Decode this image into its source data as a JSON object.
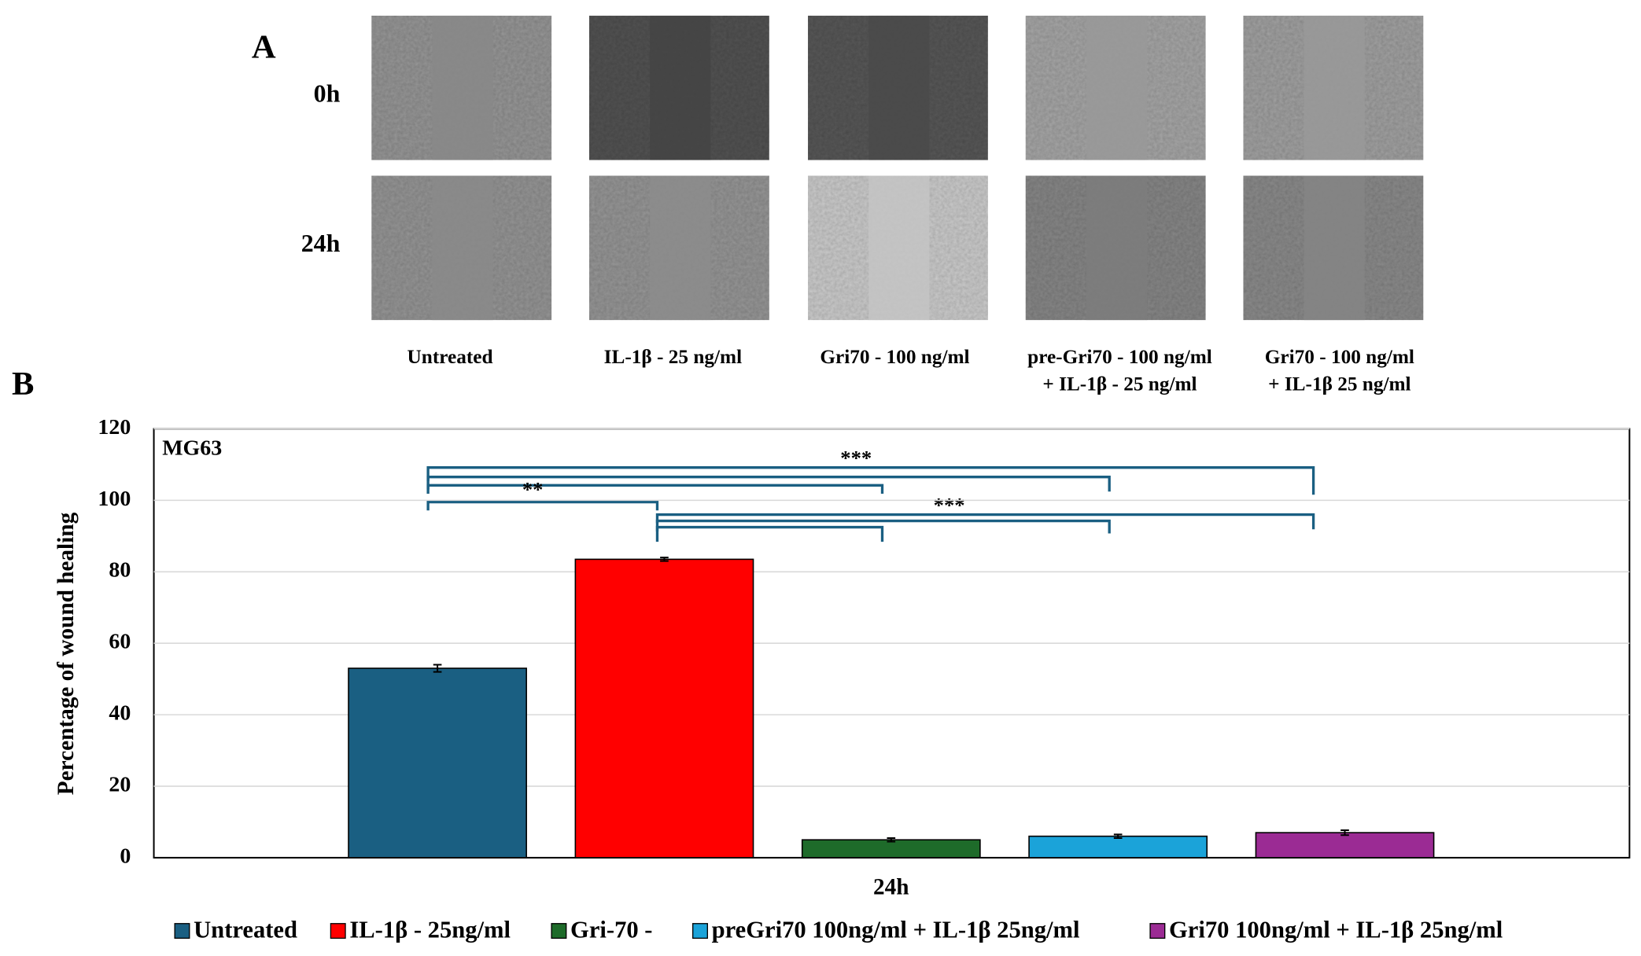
{
  "panel_a": {
    "label": "A",
    "rows": [
      "0h",
      "24h"
    ],
    "columns": [
      [
        "Untreated"
      ],
      [
        "IL-1β - 25 ng/ml"
      ],
      [
        "Gri70 - 100 ng/ml"
      ],
      [
        "pre-Gri70 - 100 ng/ml",
        "+ IL-1β - 25 ng/ml"
      ],
      [
        "Gri70 - 100 ng/ml",
        "+ IL-1β 25 ng/ml"
      ]
    ]
  },
  "panel_b_label": "B",
  "chart_data": {
    "type": "bar",
    "annotation": "MG63",
    "y_label": "Percentage of wound healing",
    "categories": [
      "24h"
    ],
    "series": [
      {
        "name": "Untreated",
        "color": "#1a5f82",
        "values": [
          53
        ],
        "errors": [
          1
        ]
      },
      {
        "name": "IL-1β - 25ng/ml",
        "color": "#ff0000",
        "values": [
          83.5
        ],
        "errors": [
          0.5
        ]
      },
      {
        "name": "Gri-70 -",
        "color": "#1e6b2a",
        "values": [
          5
        ],
        "errors": [
          0.5
        ]
      },
      {
        "name": "preGri70 100ng/ml + IL-1β 25ng/ml",
        "color": "#1ba3d9",
        "values": [
          6
        ],
        "errors": [
          0.5
        ]
      },
      {
        "name": "Gri70 100ng/ml + IL-1β 25ng/ml",
        "color": "#9b2b94",
        "values": [
          7
        ],
        "errors": [
          0.7
        ]
      }
    ],
    "ylim": [
      0,
      120
    ],
    "yticks": [
      0,
      20,
      40,
      60,
      80,
      100,
      120
    ],
    "grid": true,
    "significance": [
      "**",
      "***",
      "***"
    ]
  }
}
